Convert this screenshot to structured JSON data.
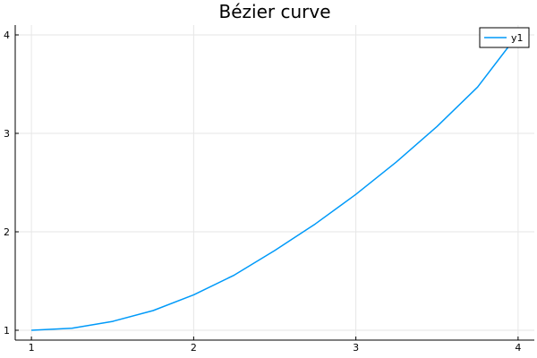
{
  "chart_data": {
    "type": "line",
    "title": "Bézier curve",
    "xlabel": "",
    "ylabel": "",
    "xlim": [
      0.9,
      4.1
    ],
    "ylim": [
      0.9,
      4.1
    ],
    "xticks": [
      1,
      2,
      3,
      4
    ],
    "yticks": [
      1,
      2,
      3,
      4
    ],
    "grid": true,
    "legend_position": "top-right",
    "series": [
      {
        "name": "y1",
        "color": "#009af9",
        "x": [
          1.0,
          1.25,
          1.5,
          1.75,
          2.0,
          2.25,
          2.5,
          2.75,
          3.0,
          3.25,
          3.5,
          3.75,
          3.95
        ],
        "y": [
          1.0,
          1.02,
          1.09,
          1.2,
          1.36,
          1.56,
          1.81,
          2.08,
          2.38,
          2.71,
          3.07,
          3.47,
          3.9
        ]
      }
    ]
  }
}
